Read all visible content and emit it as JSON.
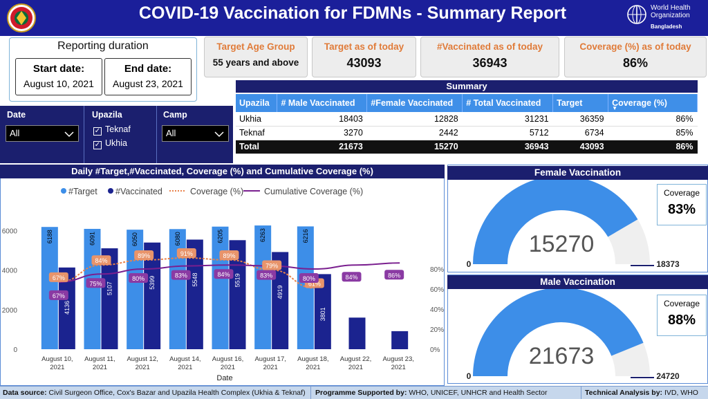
{
  "header": {
    "title": "COVID-19 Vaccination for FDMNs - Summary Report",
    "who_line1": "World Health",
    "who_line2": "Organization",
    "who_country": "Bangladesh"
  },
  "reporting": {
    "title": "Reporting duration",
    "start_label": "Start date:",
    "start_value": "August 10, 2021",
    "end_label": "End date:",
    "end_value": "August 23, 2021"
  },
  "kpis": {
    "age_label": "Target Age Group",
    "age_value": "55 years and above",
    "target_label": "Target as of today",
    "target_value": "43093",
    "vacc_label": "#Vaccinated as of today",
    "vacc_value": "36943",
    "cov_label": "Coverage (%) as of today",
    "cov_value": "86%"
  },
  "summary": {
    "title": "Summary",
    "columns": [
      "Upazila",
      "# Male Vaccinated",
      "#Female Vaccinated",
      "# Total Vaccinated",
      "Target",
      "Coverage (%)"
    ],
    "rows": [
      [
        "Ukhia",
        "18403",
        "12828",
        "31231",
        "36359",
        "86%"
      ],
      [
        "Teknaf",
        "3270",
        "2442",
        "5712",
        "6734",
        "85%"
      ]
    ],
    "total": [
      "Total",
      "21673",
      "15270",
      "36943",
      "43093",
      "86%"
    ]
  },
  "filters": {
    "date_label": "Date",
    "date_value": "All",
    "upazila_label": "Upazila",
    "upazila_options": [
      "Teknaf",
      "Ukhia"
    ],
    "camp_label": "Camp",
    "camp_value": "All"
  },
  "chart_data": {
    "type": "bar",
    "title": "Daily #Target,#Vaccinated, Coverage (%) and Cumulative Coverage (%)",
    "xlabel": "Date",
    "categories": [
      "August 10, 2021",
      "August 11, 2021",
      "August 12, 2021",
      "August 14, 2021",
      "August 16, 2021",
      "August 17, 2021",
      "August 18, 2021",
      "August 22, 2021",
      "August 23, 2021"
    ],
    "legend": [
      "#Target",
      "#Vaccinated",
      "Coverage (%)",
      "Cumulative Coverage (%)"
    ],
    "series": [
      {
        "name": "#Target",
        "values": [
          6188,
          6091,
          6050,
          6080,
          6205,
          6263,
          6216,
          null,
          null
        ],
        "color": "#3d8ee8"
      },
      {
        "name": "#Vaccinated",
        "values": [
          4136,
          5107,
          5399,
          5548,
          5519,
          4919,
          3801,
          1600,
          914
        ],
        "color": "#1b238f"
      },
      {
        "name": "Coverage (%)",
        "values": [
          67,
          84,
          89,
          91,
          89,
          79,
          61,
          null,
          null
        ],
        "color": "#e9824a"
      },
      {
        "name": "Cumulative Coverage (%)",
        "values": [
          67,
          75,
          80,
          83,
          84,
          83,
          80,
          84,
          86
        ],
        "color": "#7a1f8f"
      }
    ],
    "ylim": [
      0,
      7000
    ],
    "yticks": [
      "0",
      "2000",
      "4000",
      "6000"
    ],
    "y2lim": [
      0,
      100
    ],
    "y2ticks": [
      "0%",
      "20%",
      "40%",
      "60%",
      "80%"
    ]
  },
  "female": {
    "title": "Female Vaccination",
    "coverage_label": "Coverage",
    "coverage_value": "83%",
    "value": "15270",
    "min": "0",
    "max": "18373",
    "fraction": 0.831
  },
  "male": {
    "title": "Male Vaccination",
    "coverage_label": "Coverage",
    "coverage_value": "88%",
    "value": "21673",
    "min": "0",
    "max": "24720",
    "fraction": 0.877
  },
  "footer": {
    "src_label": "Data source:",
    "src_value": "Civil Surgeon Office, Cox's Bazar and Upazila Health Complex (Ukhia & Teknaf)",
    "prog_label": "Programme Supported by:",
    "prog_value": "WHO, UNICEF, UNHCR and Health Sector",
    "tech_label": "Technical Analysis by:",
    "tech_value": "IVD, WHO"
  }
}
